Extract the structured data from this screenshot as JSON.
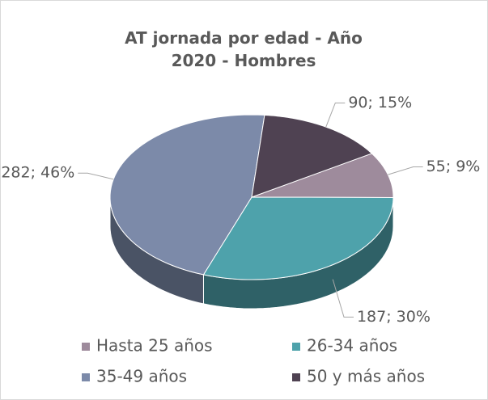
{
  "chart_data": {
    "type": "pie3d",
    "title": "AT jornada por edad - Año 2020 - Hombres",
    "categories": [
      "Hasta 25 años",
      "26-34 años",
      "35-49 años",
      "50 y más años"
    ],
    "values": [
      55,
      187,
      282,
      90
    ],
    "value_labels": [
      "55; 9%",
      "187; 30%",
      "282; 46%",
      "90; 15%"
    ],
    "colors": [
      "#9e8b9c",
      "#4ea2ab",
      "#7c8aa9",
      "#4f4252"
    ],
    "legend": "bottom"
  }
}
